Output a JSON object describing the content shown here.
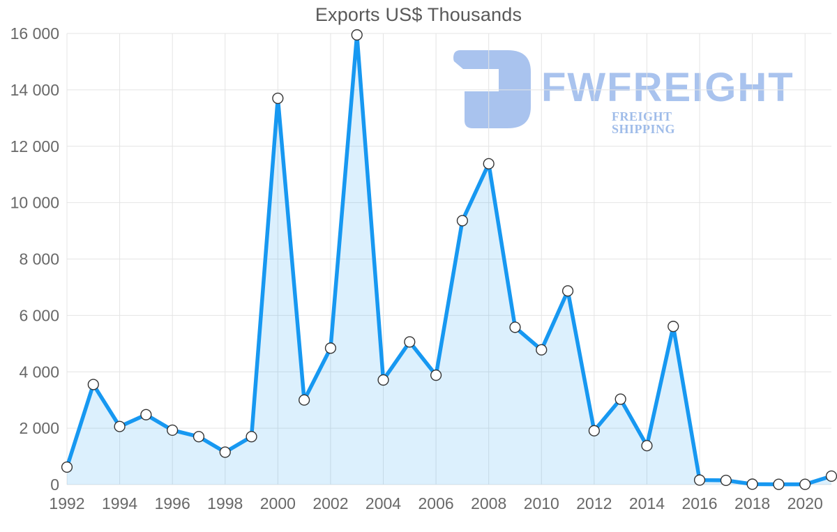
{
  "title": "Exports US$ Thousands",
  "watermark": {
    "brand": "FWFREIGHT",
    "tagline": "FREIGHT SHIPPING",
    "color": "#a9c3ee"
  },
  "chart_data": {
    "type": "area",
    "title": "Exports US$ Thousands",
    "xlabel": "",
    "ylabel": "",
    "x": [
      1992,
      1993,
      1994,
      1995,
      1996,
      1997,
      1998,
      1999,
      2000,
      2001,
      2002,
      2003,
      2004,
      2005,
      2006,
      2007,
      2008,
      2009,
      2010,
      2011,
      2012,
      2013,
      2014,
      2015,
      2016,
      2017,
      2018,
      2019,
      2020,
      2021
    ],
    "series": [
      {
        "name": "Exports US$ Thousands",
        "values": [
          620,
          3550,
          2060,
          2480,
          1930,
          1700,
          1150,
          1700,
          13700,
          3000,
          4840,
          15950,
          3710,
          5060,
          3880,
          9360,
          11380,
          5580,
          4780,
          6870,
          1910,
          3030,
          1380,
          5610,
          160,
          150,
          15,
          10,
          10,
          300
        ]
      }
    ],
    "ylim": [
      0,
      16000
    ],
    "y_ticks": [
      0,
      2000,
      4000,
      6000,
      8000,
      10000,
      12000,
      14000,
      16000
    ],
    "y_tick_labels": [
      "0",
      "2 000",
      "4 000",
      "6 000",
      "8 000",
      "10 000",
      "12 000",
      "14 000",
      "16 000"
    ],
    "x_tick_labels": [
      "1992",
      "1994",
      "1996",
      "1998",
      "2000",
      "2002",
      "2004",
      "2006",
      "2008",
      "2010",
      "2012",
      "2014",
      "2016",
      "2018",
      "2020"
    ],
    "grid": true,
    "legend": "none",
    "line_color": "#1798f1",
    "fill_color": "rgba(23,152,241,0.15)",
    "grid_color": "#e4e4e4",
    "tick_color": "#686868",
    "marker": {
      "fill": "#ffffff",
      "stroke": "#333333",
      "radius": 7.4
    }
  }
}
